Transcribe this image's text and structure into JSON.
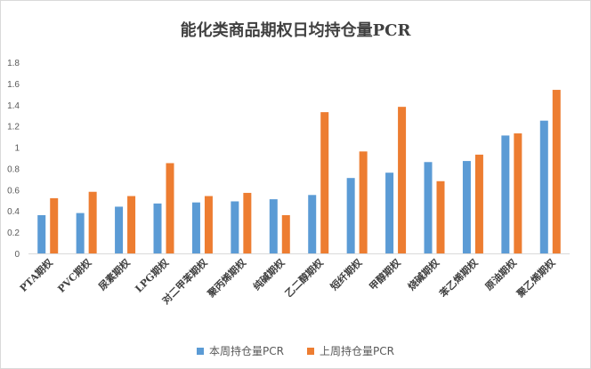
{
  "chart_data": {
    "type": "bar",
    "title": "能化类商品期权日均持仓量PCR",
    "categories": [
      "PTA期权",
      "PVC期权",
      "尿素期权",
      "LPG期权",
      "对二甲苯期权",
      "聚丙烯期权",
      "纯碱期权",
      "乙二醇期权",
      "短纤期权",
      "甲醇期权",
      "烧碱期权",
      "苯乙烯期权",
      "原油期权",
      "聚乙烯期权"
    ],
    "series": [
      {
        "name": "本周持仓量PCR",
        "color": "#5b9bd5",
        "values": [
          0.36,
          0.38,
          0.44,
          0.47,
          0.48,
          0.49,
          0.51,
          0.55,
          0.71,
          0.76,
          0.86,
          0.87,
          1.11,
          1.25
        ]
      },
      {
        "name": "上周持仓量PCR",
        "color": "#ed7d31",
        "values": [
          0.52,
          0.58,
          0.54,
          0.85,
          0.54,
          0.57,
          0.36,
          1.33,
          0.96,
          1.38,
          0.68,
          0.93,
          1.13,
          1.54
        ]
      }
    ],
    "yticks": [
      "0",
      "0.2",
      "0.4",
      "0.6",
      "0.8",
      "1",
      "1.2",
      "1.4",
      "1.6",
      "1.8"
    ],
    "ylim": [
      0,
      1.8
    ],
    "grid": false,
    "legend": "bottom"
  }
}
